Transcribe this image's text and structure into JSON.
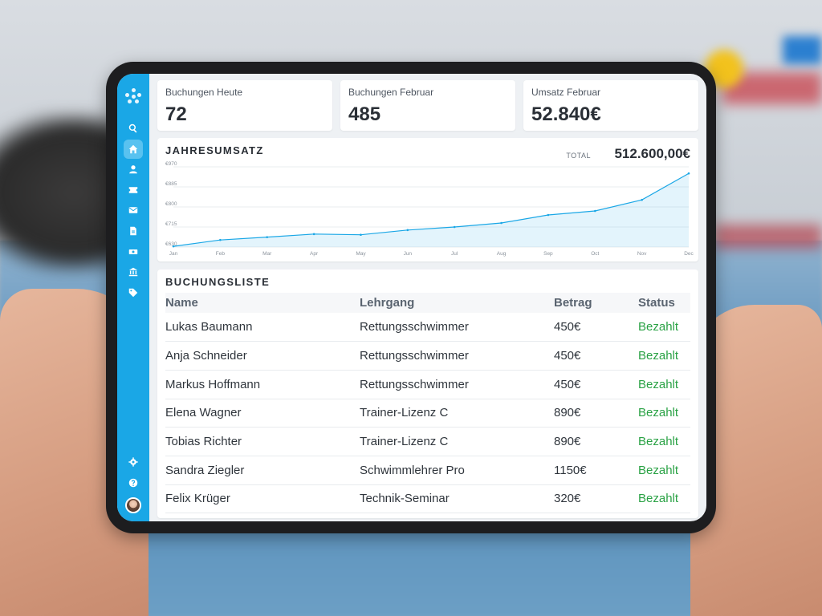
{
  "stats": [
    {
      "label": "Buchungen Heute",
      "value": "72"
    },
    {
      "label": "Buchungen Februar",
      "value": "485"
    },
    {
      "label": "Umsatz Februar",
      "value": "52.840€"
    }
  ],
  "chart_section": {
    "title": "JAHRESUMSATZ",
    "total_label": "TOTAL",
    "total_value": "512.600,00€"
  },
  "chart_data": {
    "type": "area",
    "categories": [
      "Jan",
      "Feb",
      "Mar",
      "Apr",
      "May",
      "Jun",
      "Jul",
      "Aug",
      "Sep",
      "Oct",
      "Nov",
      "Dec"
    ],
    "y_ticks": [
      "€970",
      "€885",
      "€800",
      "€715",
      "€630"
    ],
    "ylim": [
      630,
      970
    ],
    "series": [
      {
        "values": [
          633,
          660,
          672,
          685,
          682,
          702,
          715,
          732,
          766,
          783,
          830,
          942
        ]
      }
    ],
    "grid": true,
    "color": "#1aa7e6"
  },
  "booking_list": {
    "title": "BUCHUNGSLISTE",
    "columns": [
      "Name",
      "Lehrgang",
      "Betrag",
      "Status"
    ],
    "rows": [
      [
        "Lukas Baumann",
        "Rettungsschwimmer",
        "450€",
        "Bezahlt"
      ],
      [
        "Anja Schneider",
        "Rettungsschwimmer",
        "450€",
        "Bezahlt"
      ],
      [
        "Markus Hoffmann",
        "Rettungsschwimmer",
        "450€",
        "Bezahlt"
      ],
      [
        "Elena Wagner",
        "Trainer-Lizenz C",
        "890€",
        "Bezahlt"
      ],
      [
        "Tobias Richter",
        "Trainer-Lizenz C",
        "890€",
        "Bezahlt"
      ],
      [
        "Sandra Ziegler",
        "Schwimmlehrer Pro",
        "1150€",
        "Bezahlt"
      ],
      [
        "Felix Krüger",
        "Technik-Seminar",
        "320€",
        "Bezahlt"
      ]
    ]
  },
  "sidebar": {
    "items": [
      {
        "icon": "search-icon"
      },
      {
        "icon": "home-icon",
        "active": true
      },
      {
        "icon": "user-icon"
      },
      {
        "icon": "ticket-icon"
      },
      {
        "icon": "mail-icon"
      },
      {
        "icon": "document-icon"
      },
      {
        "icon": "money-icon"
      },
      {
        "icon": "bank-icon"
      },
      {
        "icon": "tag-icon"
      }
    ],
    "bottom": [
      {
        "icon": "gear-icon"
      },
      {
        "icon": "help-icon"
      }
    ]
  },
  "colors": {
    "accent": "#1aa7e6",
    "status_paid": "#2aa245"
  }
}
